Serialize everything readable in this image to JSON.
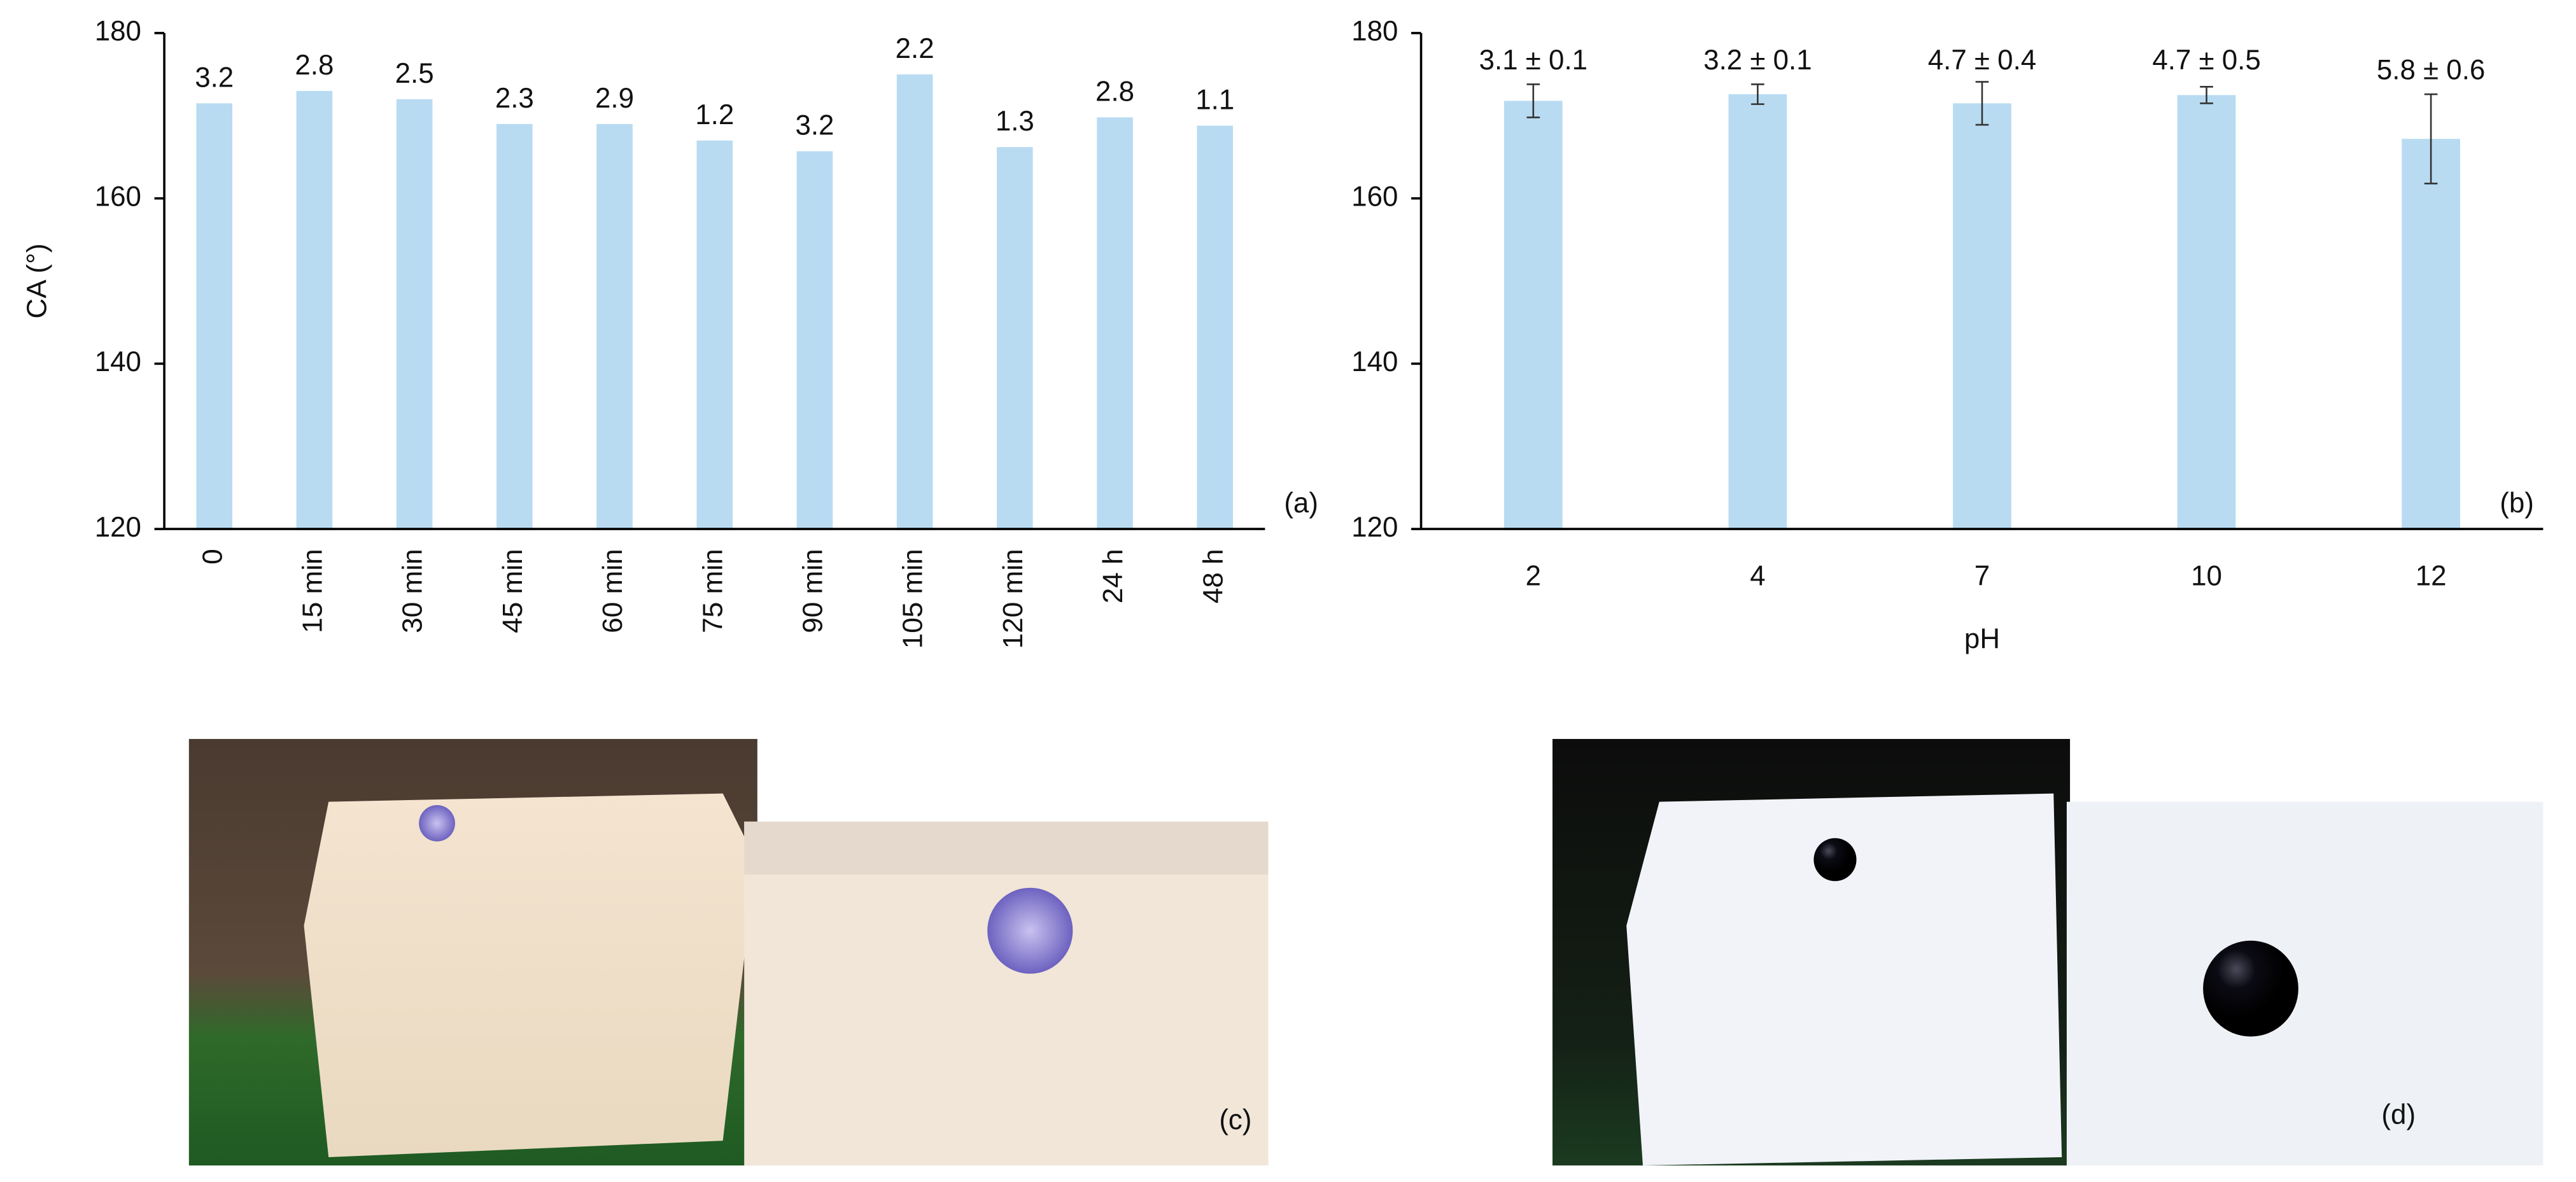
{
  "chart_data": [
    {
      "type": "bar",
      "y_label": "CA (°)",
      "panel_label": "(a)",
      "categories": [
        "0",
        "15 min",
        "30 min",
        "45 min",
        "60 min",
        "75 min",
        "90 min",
        "105 min",
        "120 min",
        "24 h",
        "48 h"
      ],
      "values": [
        171.5,
        173,
        172,
        169,
        169,
        167,
        165.7,
        175,
        166.2,
        169.8,
        168.8
      ],
      "sd": [
        3.2,
        2.8,
        2.5,
        2.3,
        2.9,
        1.2,
        3.2,
        2.2,
        1.3,
        2.8,
        1.1
      ],
      "color": "#b8dbf2",
      "ylim": [
        120,
        180
      ],
      "yticks": [
        120,
        140,
        160,
        180
      ],
      "grid": false
    },
    {
      "type": "bar",
      "x_label": "pH",
      "panel_label": "(b)",
      "categories": [
        "2",
        "4",
        "7",
        "10",
        "12"
      ],
      "values": [
        171.8,
        172.6,
        171.5,
        172.5,
        167.2
      ],
      "errors": [
        2,
        1.2,
        2.6,
        1,
        5.4
      ],
      "annotations": [
        "3.1 ± 0.1",
        "3.2 ± 0.1",
        "4.7 ± 0.4",
        "4.7 ± 0.5",
        "5.8 ± 0.6"
      ],
      "color": "#b8dbf2",
      "ylim": [
        120,
        180
      ],
      "yticks": [
        120,
        140,
        160,
        180
      ],
      "grid": false
    }
  ],
  "photos": [
    {
      "label": "(c)"
    },
    {
      "label": "(d)"
    }
  ]
}
